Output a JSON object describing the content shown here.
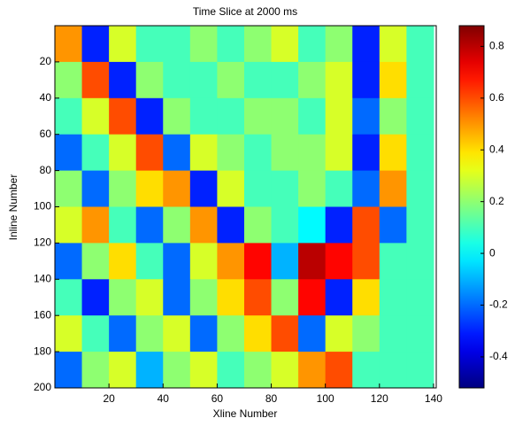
{
  "chart_data": {
    "type": "heatmap",
    "title": "Time Slice at 2000 ms",
    "xlabel": "Xline Number",
    "ylabel": "Inline Number",
    "x": [
      5,
      15,
      25,
      35,
      45,
      55,
      65,
      75,
      85,
      95,
      105,
      115,
      125,
      135
    ],
    "y": [
      10,
      30,
      50,
      70,
      90,
      110,
      130,
      150,
      170,
      190
    ],
    "z": [
      [
        0.5,
        -0.3,
        0.3,
        0.1,
        0.1,
        0.2,
        0.1,
        0.2,
        0.3,
        0.1,
        0.2,
        -0.3,
        0.3,
        0.1
      ],
      [
        0.2,
        0.6,
        -0.3,
        0.2,
        0.1,
        0.1,
        0.2,
        0.1,
        0.1,
        0.2,
        0.3,
        -0.3,
        0.4,
        0.1
      ],
      [
        0.1,
        0.3,
        0.6,
        -0.3,
        0.2,
        0.1,
        0.1,
        0.2,
        0.2,
        0.1,
        0.3,
        -0.2,
        0.2,
        0.1
      ],
      [
        -0.2,
        0.1,
        0.3,
        0.6,
        -0.2,
        0.3,
        0.2,
        0.1,
        0.2,
        0.2,
        0.3,
        -0.3,
        0.4,
        0.1
      ],
      [
        0.2,
        -0.2,
        0.2,
        0.4,
        0.5,
        -0.3,
        0.3,
        0.1,
        0.1,
        0.2,
        0.1,
        -0.2,
        0.5,
        0.1
      ],
      [
        0.3,
        0.5,
        0.1,
        -0.2,
        0.2,
        0.5,
        -0.3,
        0.2,
        0.1,
        0.0,
        -0.3,
        0.6,
        -0.2,
        0.1
      ],
      [
        -0.2,
        0.2,
        0.4,
        0.1,
        -0.2,
        0.3,
        0.5,
        0.7,
        -0.1,
        0.8,
        0.7,
        0.6,
        0.1,
        0.1
      ],
      [
        0.1,
        -0.3,
        0.2,
        0.3,
        -0.2,
        0.2,
        0.4,
        0.6,
        0.2,
        0.7,
        -0.3,
        0.4,
        0.1,
        0.1
      ],
      [
        0.3,
        0.1,
        -0.2,
        0.2,
        0.3,
        -0.2,
        0.2,
        0.4,
        0.6,
        -0.2,
        0.3,
        0.2,
        0.1,
        0.1
      ],
      [
        -0.2,
        0.2,
        0.3,
        -0.1,
        0.2,
        0.3,
        0.1,
        0.2,
        0.3,
        0.5,
        0.6,
        0.1,
        0.1,
        0.1
      ]
    ],
    "xlim": [
      0,
      141
    ],
    "ylim": [
      200,
      0
    ],
    "xticks": [
      20,
      40,
      60,
      80,
      100,
      120,
      140
    ],
    "yticks": [
      20,
      40,
      60,
      80,
      100,
      120,
      140,
      160,
      180,
      200
    ],
    "clim": [
      -0.52,
      0.88
    ],
    "cticks": [
      -0.4,
      -0.2,
      0,
      0.2,
      0.4,
      0.6,
      0.8
    ],
    "colormap": "jet"
  }
}
